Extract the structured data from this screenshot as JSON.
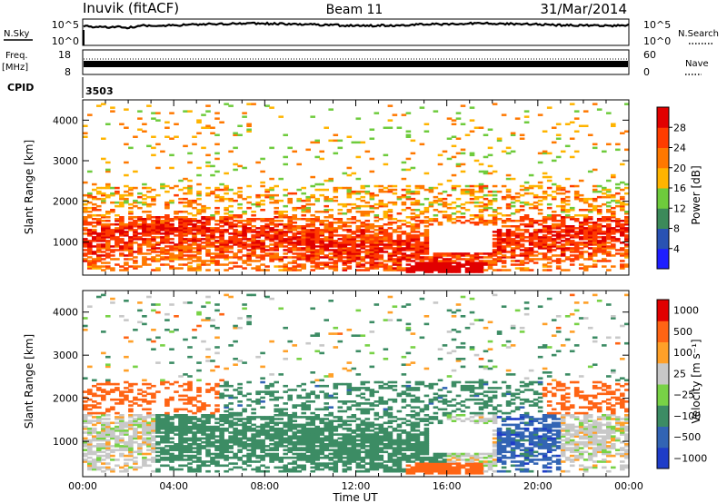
{
  "header": {
    "station": "Inuvik (fitACF)",
    "beam": "Beam 11",
    "date": "31/Mar/2014"
  },
  "top_panels": {
    "nsky_label": "N.Sky",
    "nsky_ticks": [
      "10^5",
      "10^0"
    ],
    "nsearch_label": "N.Search",
    "nsearch_ticks": [
      "10^5",
      "10^0"
    ],
    "freq_label": "Freq.",
    "freq_unit": "[MHz]",
    "freq_ticks": [
      "18",
      "8"
    ],
    "nave_label": "Nave",
    "nave_ticks": [
      "60",
      "0"
    ],
    "cpid_label": "CPID",
    "cpid_value": "3503"
  },
  "chart_data": [
    {
      "type": "heatmap",
      "title": "",
      "ylabel": "Slant Range [km]",
      "xlabel": "",
      "x_ticks": [
        "00:00",
        "04:00",
        "08:00",
        "12:00",
        "16:00",
        "20:00",
        "00:00"
      ],
      "y_ticks": [
        1000,
        2000,
        3000,
        4000
      ],
      "ylim": [
        180,
        4500
      ],
      "xlim_hours": [
        0,
        24
      ],
      "colorbar_label": "Power [dB]",
      "colorbar_ticks": [
        4,
        8,
        12,
        16,
        20,
        24,
        28
      ],
      "colorbar_colors": [
        "#1e1eff",
        "#2952b3",
        "#3c8a5a",
        "#6ecb3c",
        "#ffb400",
        "#ff7800",
        "#ff3c00",
        "#e10000"
      ]
    },
    {
      "type": "heatmap",
      "title": "",
      "ylabel": "Slant Range [km]",
      "xlabel": "Time UT",
      "x_ticks": [
        "00:00",
        "04:00",
        "08:00",
        "12:00",
        "16:00",
        "20:00",
        "00:00"
      ],
      "y_ticks": [
        1000,
        2000,
        3000,
        4000
      ],
      "ylim": [
        180,
        4500
      ],
      "xlim_hours": [
        0,
        24
      ],
      "colorbar_label": "Velocity [m s⁻¹]",
      "colorbar_ticks": [
        "1000",
        "500",
        "100",
        "25",
        "−25",
        "−100",
        "−500",
        "−1000"
      ],
      "colorbar_colors": [
        "#1e3cc8",
        "#3264b4",
        "#3c8c64",
        "#78d246",
        "#c8c8c8",
        "#ffa028",
        "#ff6414",
        "#e10000"
      ]
    }
  ]
}
